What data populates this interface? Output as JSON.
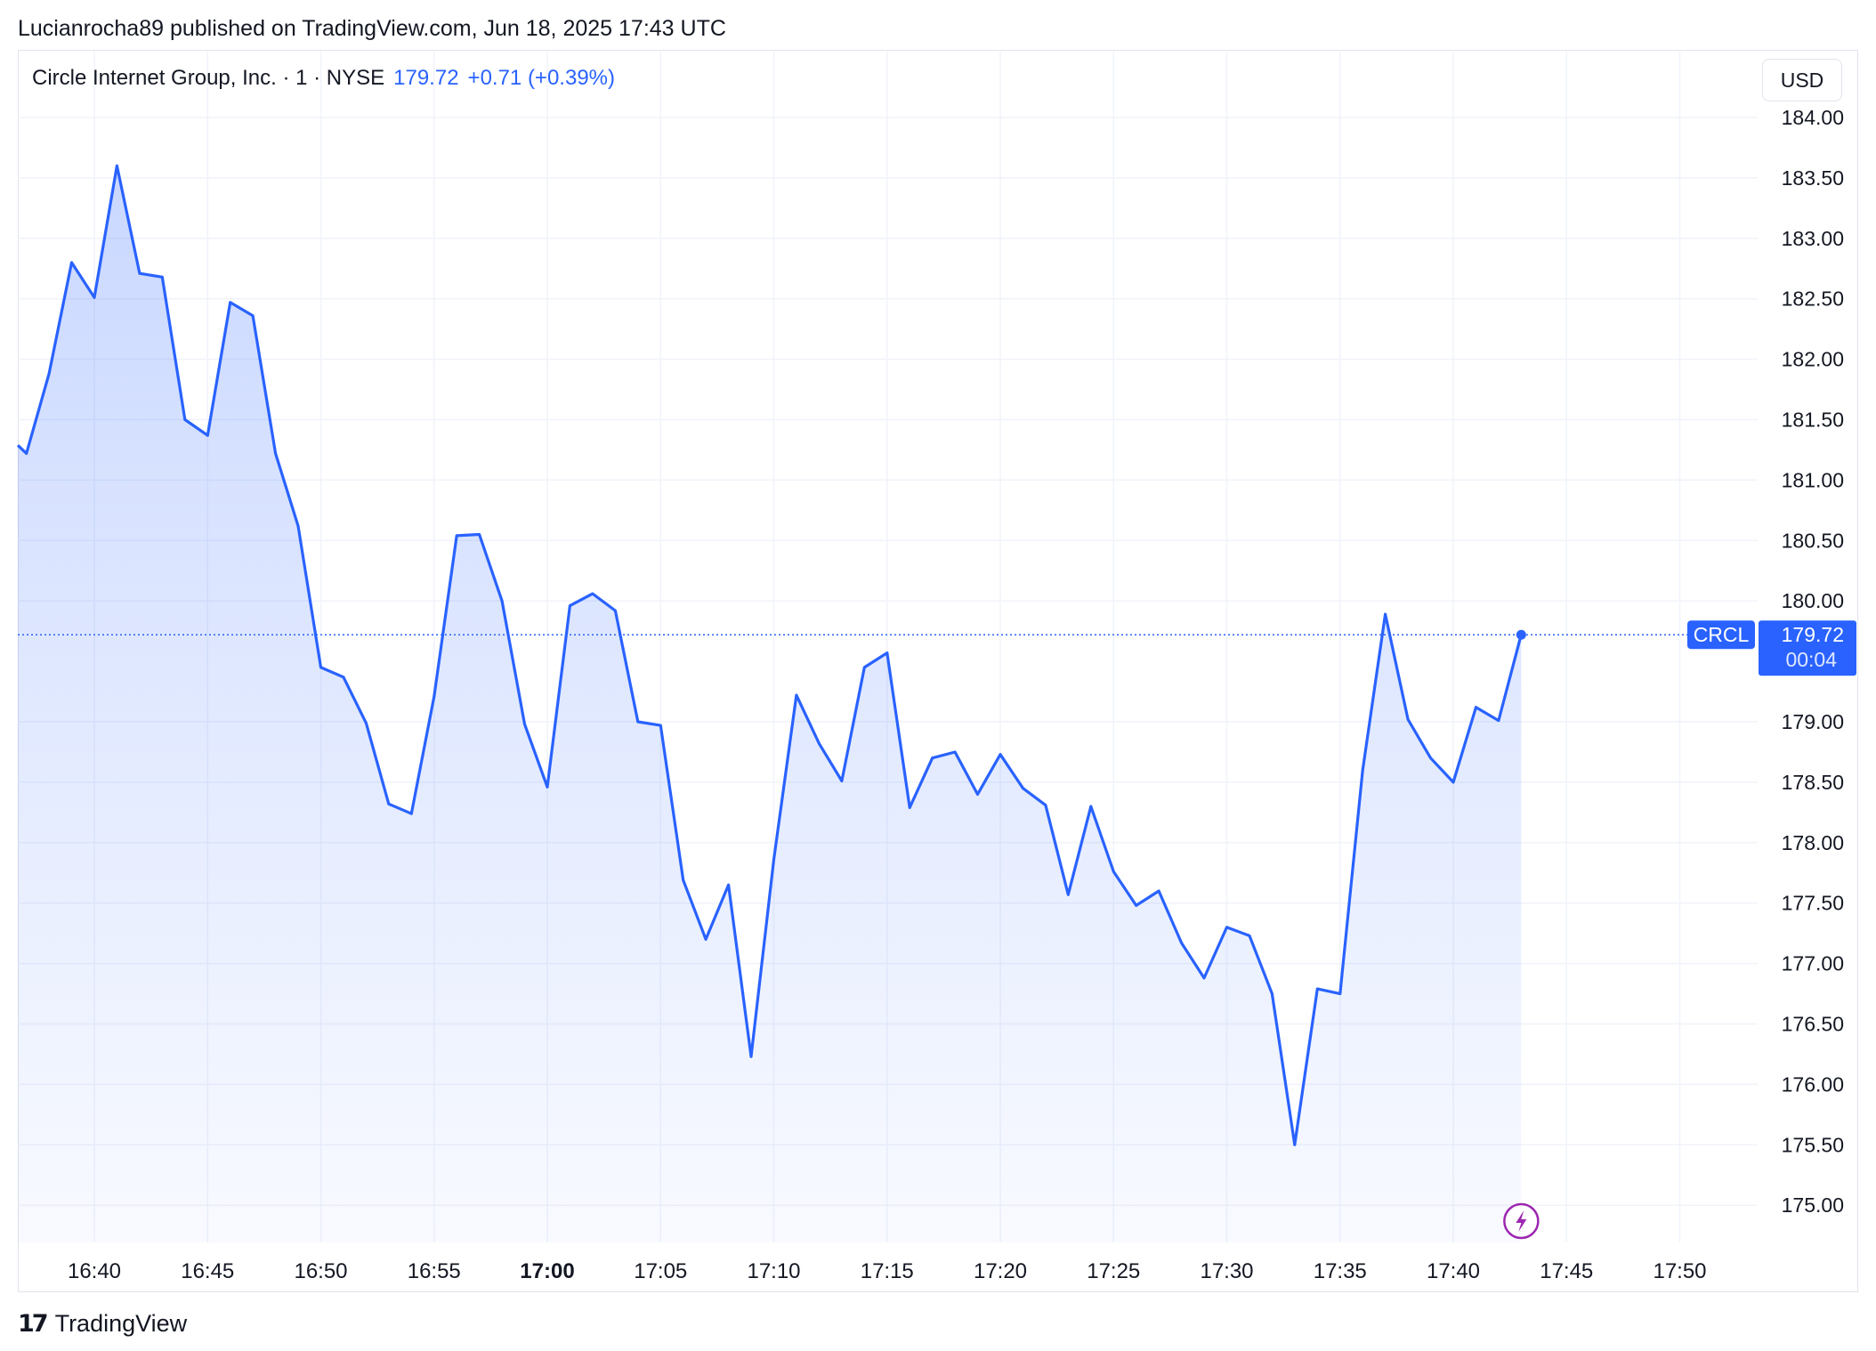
{
  "header": {
    "published": "Lucianrocha89 published on TradingView.com, Jun 18, 2025 17:43 UTC"
  },
  "legend": {
    "symbol": "Circle Internet Group, Inc. · 1 · NYSE",
    "price": "179.72",
    "change": "+0.71 (+0.39%)"
  },
  "currency": "USD",
  "footer": {
    "brand": "TradingView",
    "logo_text": "17"
  },
  "colors": {
    "line": "#2962ff",
    "grid": "#f0f3fa",
    "text": "#131722",
    "lightning": "#9c27b0"
  },
  "price_label": {
    "ticker": "CRCL",
    "price": "179.72",
    "countdown": "00:04"
  },
  "chart_data": {
    "type": "area",
    "title": "",
    "xlabel": "",
    "ylabel": "",
    "ylim": [
      175.0,
      184.0
    ],
    "y_ticks": [
      "184.00",
      "183.50",
      "183.00",
      "182.50",
      "182.00",
      "181.50",
      "181.00",
      "180.50",
      "180.00",
      "179.00",
      "178.50",
      "178.00",
      "177.50",
      "177.00",
      "176.50",
      "176.00",
      "175.50",
      "175.00"
    ],
    "x_ticks": [
      "16:40",
      "16:45",
      "16:50",
      "16:55",
      "17:00",
      "17:05",
      "17:10",
      "17:15",
      "17:20",
      "17:25",
      "17:30",
      "17:35",
      "17:40",
      "17:45",
      "17:50"
    ],
    "x_tick_bold": "17:00",
    "current_price": 179.72,
    "grid": true,
    "series": [
      {
        "x": [
          "16:36",
          "16:37",
          "16:38",
          "16:39",
          "16:40",
          "16:41",
          "16:42",
          "16:43",
          "16:44",
          "16:45",
          "16:46",
          "16:47",
          "16:48",
          "16:49",
          "16:50",
          "16:51",
          "16:52",
          "16:53",
          "16:54",
          "16:55",
          "16:56",
          "16:57",
          "16:58",
          "16:59",
          "17:00",
          "17:01",
          "17:02",
          "17:03",
          "17:04",
          "17:05",
          "17:06",
          "17:07",
          "17:08",
          "17:09",
          "17:10",
          "17:11",
          "17:12",
          "17:13",
          "17:14",
          "17:15",
          "17:16",
          "17:17",
          "17:18",
          "17:19",
          "17:20",
          "17:21",
          "17:22",
          "17:23",
          "17:24",
          "17:25",
          "17:26",
          "17:27",
          "17:28",
          "17:29",
          "17:30",
          "17:31",
          "17:32",
          "17:33",
          "17:34",
          "17:35",
          "17:36",
          "17:37",
          "17:38",
          "17:39",
          "17:40",
          "17:41",
          "17:42",
          "17:43"
        ],
        "values": [
          181.4,
          181.22,
          181.88,
          182.8,
          182.51,
          183.6,
          182.71,
          182.68,
          181.5,
          181.37,
          182.47,
          182.36,
          181.22,
          180.62,
          179.45,
          179.37,
          178.99,
          178.32,
          178.24,
          179.21,
          180.54,
          180.55,
          180.0,
          178.98,
          178.46,
          179.96,
          180.06,
          179.92,
          179.0,
          178.97,
          177.69,
          177.2,
          177.65,
          176.23,
          177.86,
          179.22,
          178.82,
          178.51,
          179.45,
          179.57,
          178.29,
          178.7,
          178.75,
          178.4,
          178.73,
          178.45,
          178.31,
          177.57,
          178.3,
          177.76,
          177.48,
          177.6,
          177.17,
          176.88,
          177.3,
          177.23,
          176.75,
          175.5,
          176.79,
          176.75,
          178.6,
          179.89,
          179.02,
          178.7,
          178.5,
          179.12,
          179.01,
          179.72
        ]
      }
    ]
  }
}
